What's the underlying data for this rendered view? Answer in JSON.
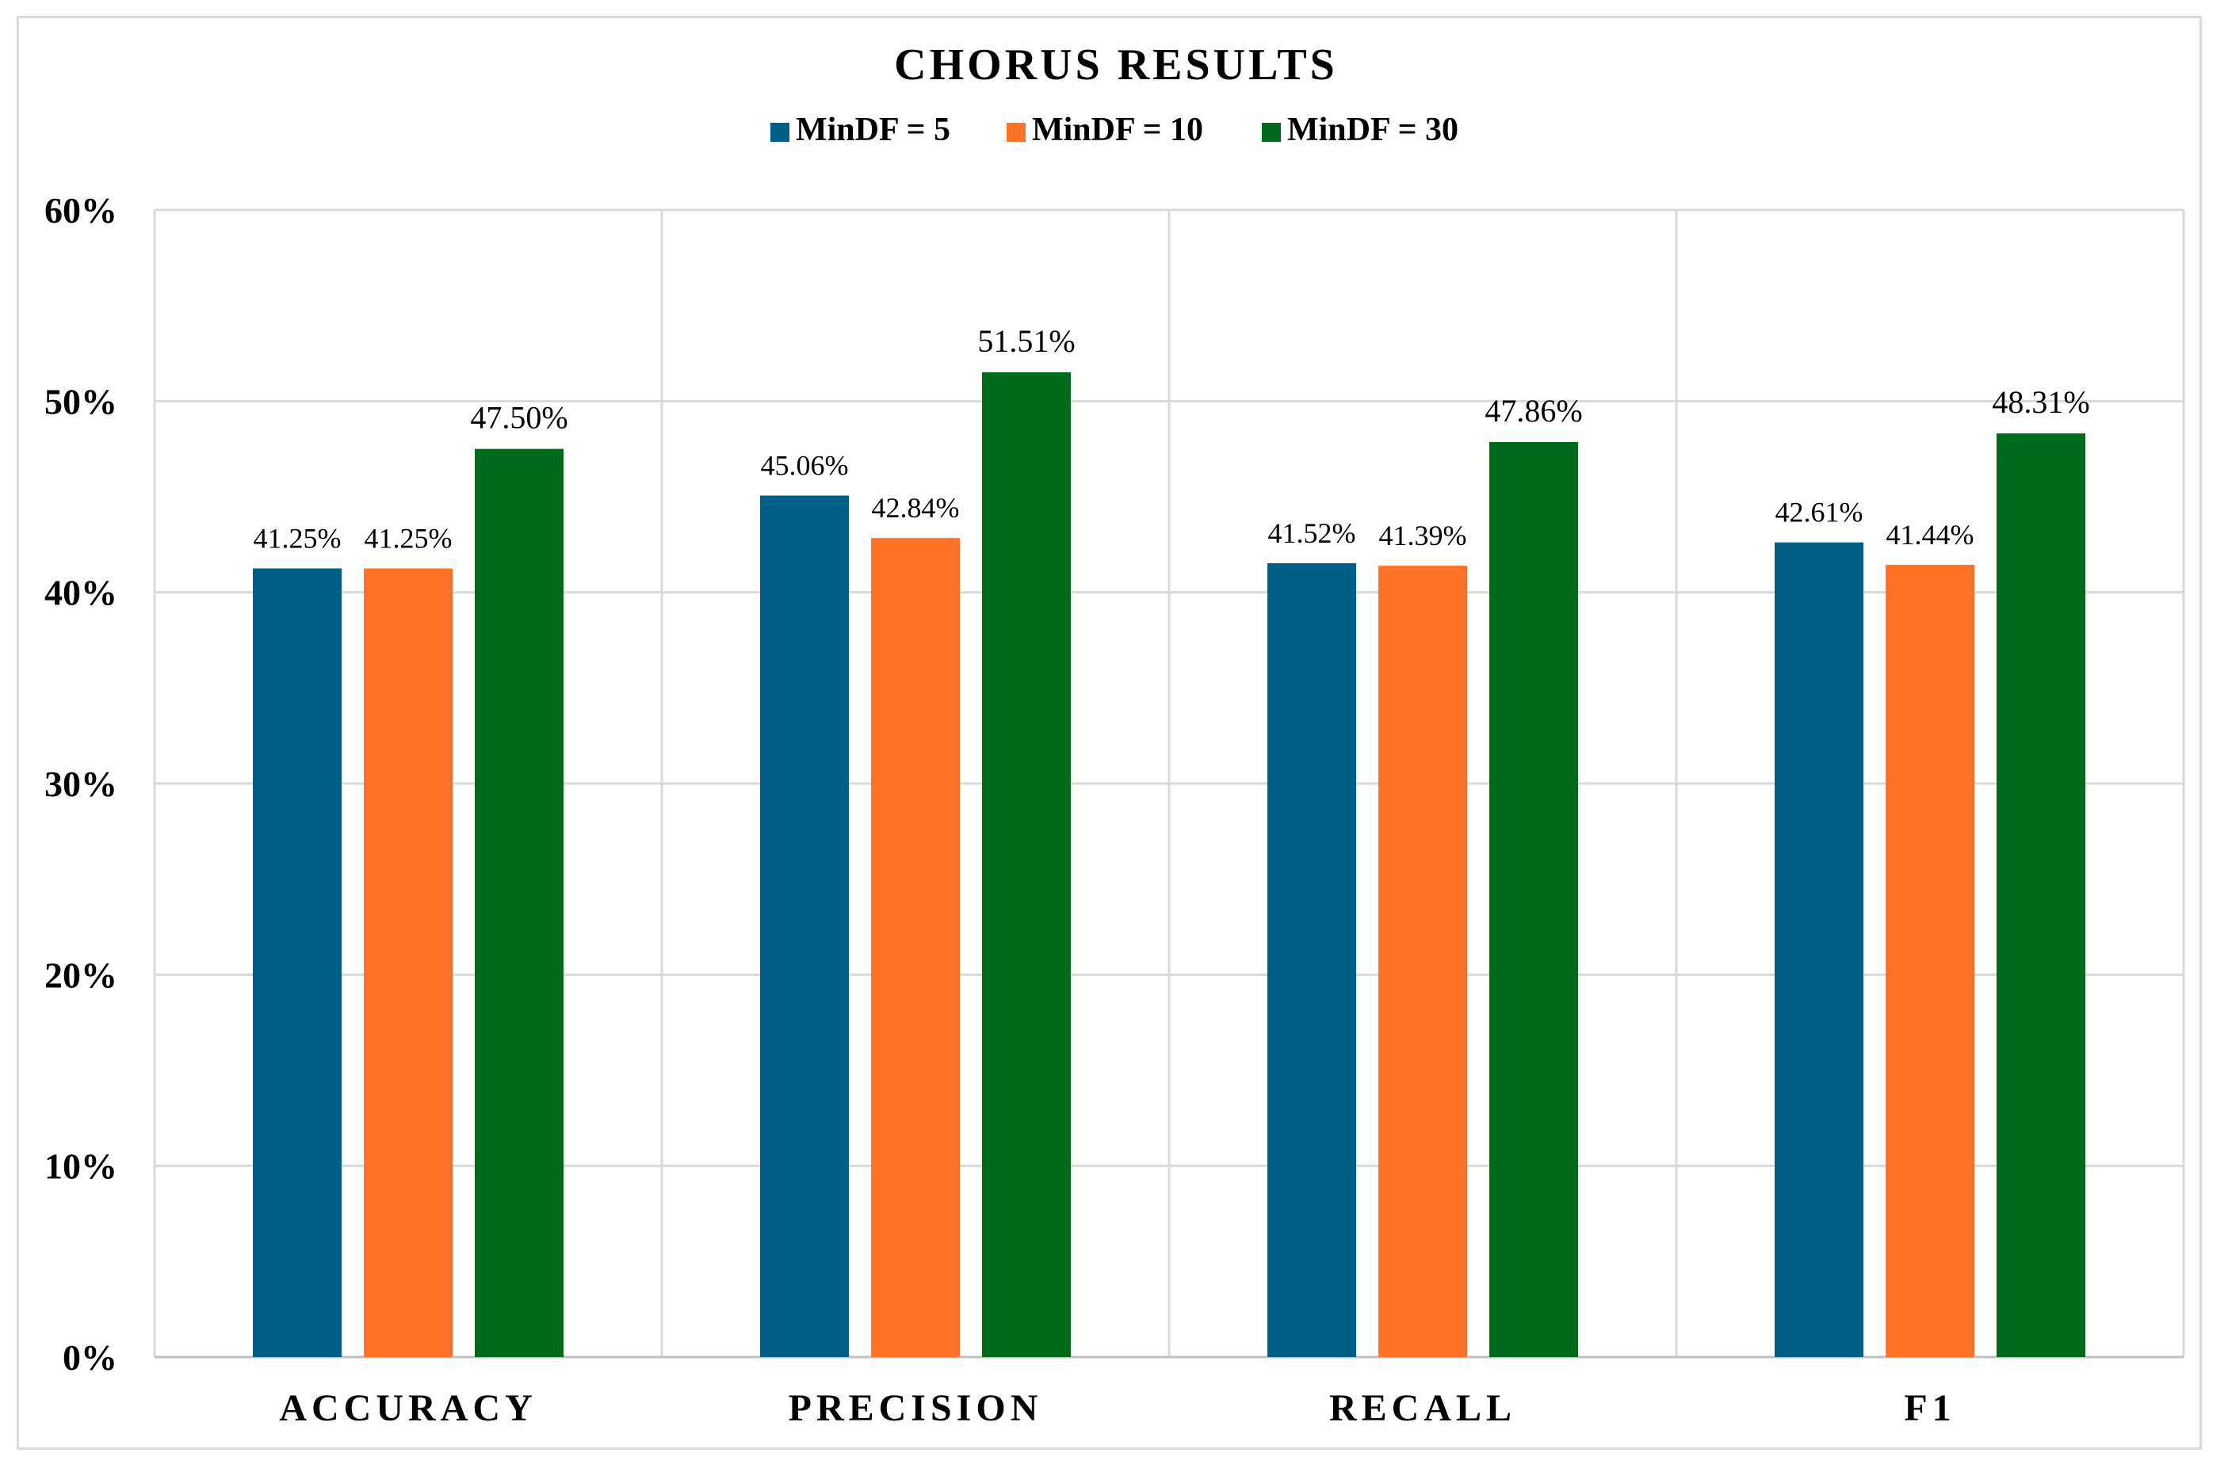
{
  "chart_data": {
    "type": "bar",
    "title": "CHORUS RESULTS",
    "categories": [
      "ACCURACY",
      "PRECISION",
      "RECALL",
      "F1"
    ],
    "series": [
      {
        "name": "MinDF = 5",
        "color": "#005f86",
        "values": [
          41.25,
          45.06,
          41.52,
          42.61
        ],
        "labels": [
          "41.25%",
          "45.06%",
          "41.52%",
          "42.61%"
        ]
      },
      {
        "name": "MinDF = 10",
        "color": "#ff7329",
        "values": [
          41.25,
          42.84,
          41.39,
          41.44
        ],
        "labels": [
          "41.25%",
          "42.84%",
          "41.39%",
          "41.44%"
        ]
      },
      {
        "name": "MinDF = 30",
        "color": "#006a1c",
        "values": [
          47.5,
          51.51,
          47.86,
          48.31
        ],
        "labels": [
          "47.50%",
          "51.51%",
          "47.86%",
          "48.31%"
        ]
      }
    ],
    "ylim": [
      0,
      60
    ],
    "yticks": [
      0,
      10,
      20,
      30,
      40,
      50,
      60
    ],
    "ytick_labels": [
      "0%",
      "10%",
      "20%",
      "30%",
      "40%",
      "50%",
      "60%"
    ],
    "xlabel": "",
    "ylabel": "",
    "grid": true,
    "legend_position": "top-center"
  }
}
